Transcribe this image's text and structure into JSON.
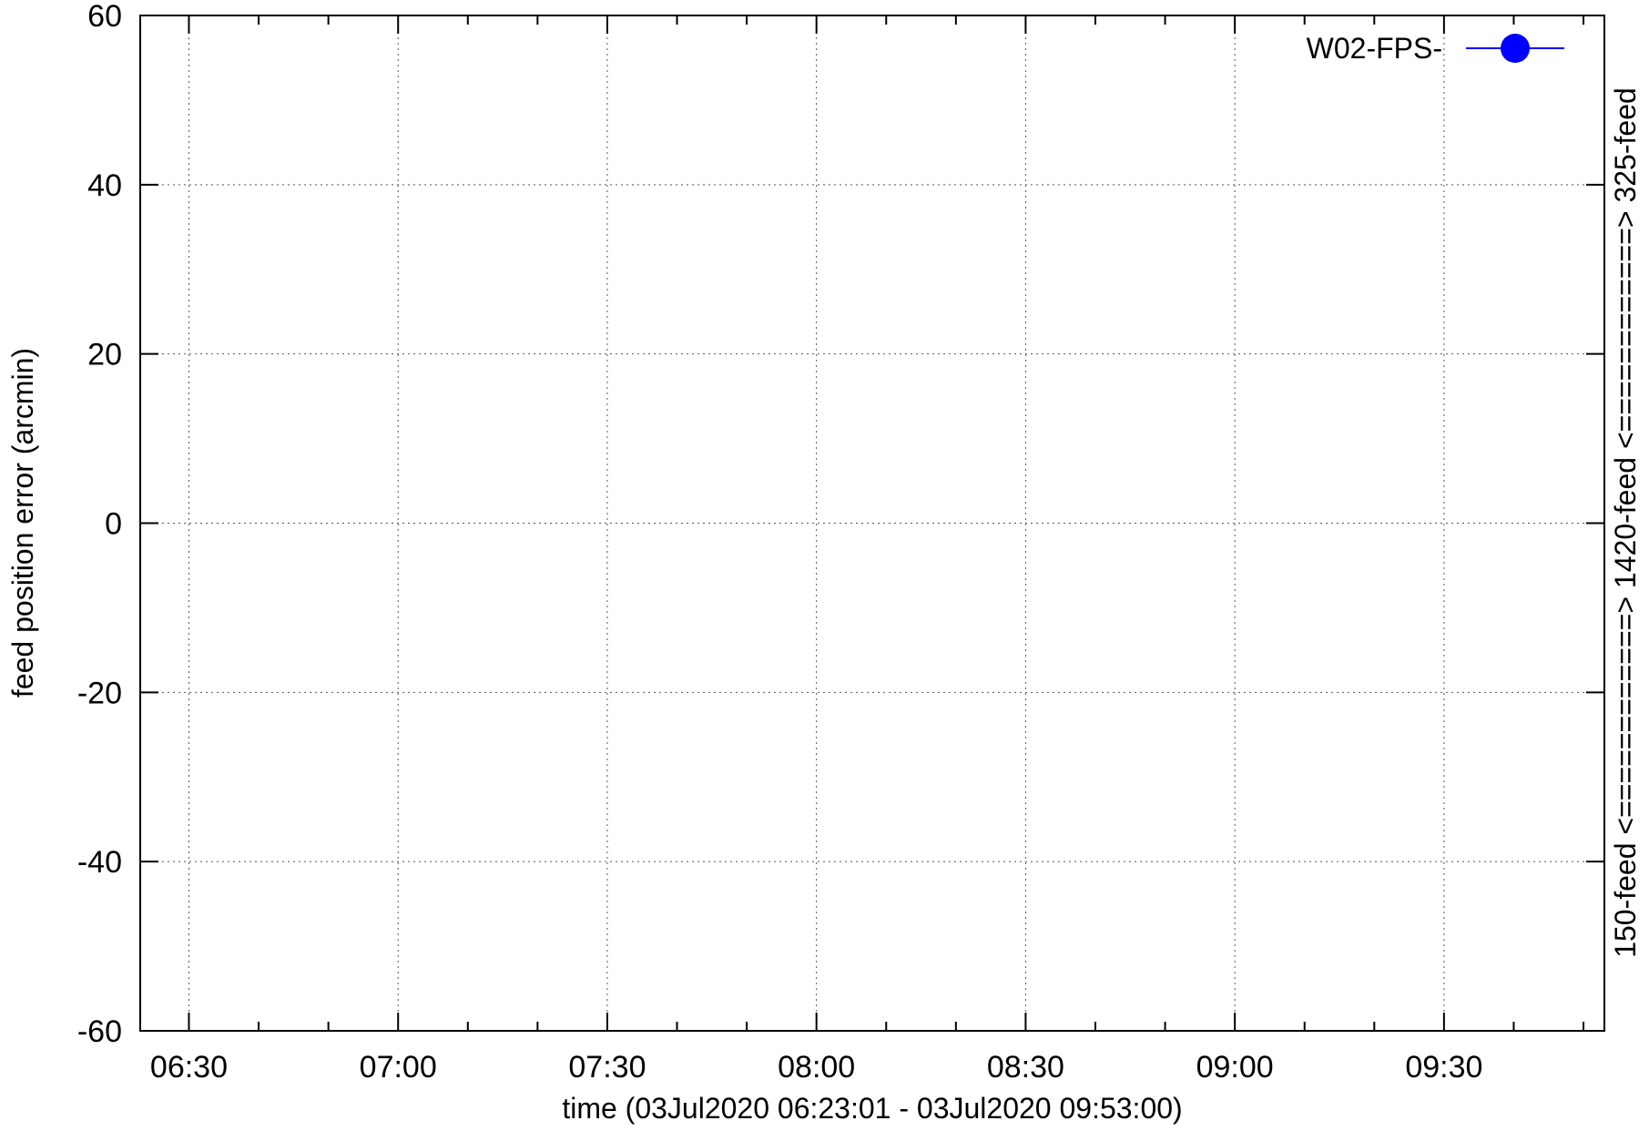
{
  "chart_data": {
    "type": "line",
    "title": "",
    "xlabel": "time (03Jul2020 06:23:01 - 03Jul2020 09:53:00)",
    "ylabel": "feed position error (arcmin)",
    "y2label": "150-feed <============> 1420-feed <============> 325-feed",
    "xlim": [
      "06:23:01",
      "09:53:00"
    ],
    "ylim": [
      -60,
      60
    ],
    "xticks": [
      "06:30",
      "07:00",
      "07:30",
      "08:00",
      "08:30",
      "09:00",
      "09:30"
    ],
    "yticks": [
      -60,
      -40,
      -20,
      0,
      20,
      40,
      60
    ],
    "grid": true,
    "legend_position": "top-right",
    "series": [
      {
        "name": "W02-FPS-",
        "color": "#0000ff",
        "marker": "circle",
        "x": [],
        "y": []
      }
    ]
  }
}
